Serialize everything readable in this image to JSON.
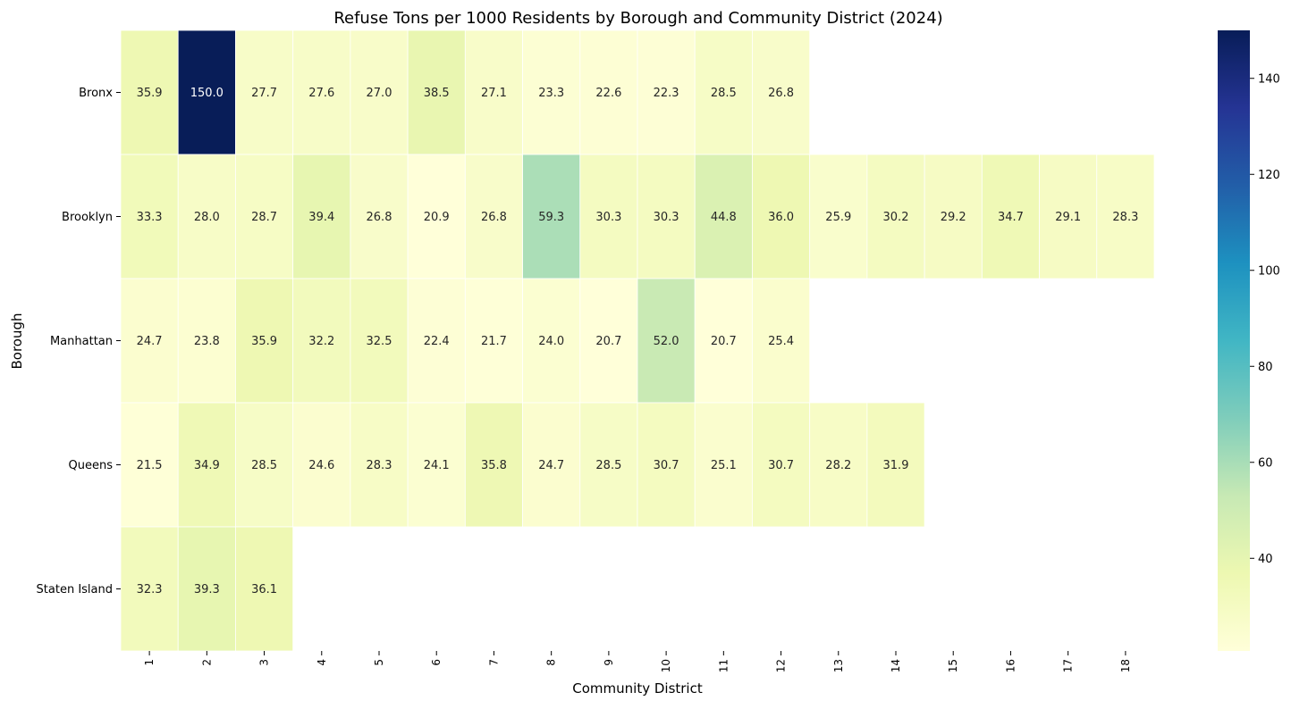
{
  "chart_data": {
    "type": "heatmap",
    "title": "Refuse Tons per 1000 Residents by Borough and Community District (2024)",
    "xlabel": "Community District",
    "ylabel": "Borough",
    "x_categories": [
      "1",
      "2",
      "3",
      "4",
      "5",
      "6",
      "7",
      "8",
      "9",
      "10",
      "11",
      "12",
      "13",
      "14",
      "15",
      "16",
      "17",
      "18"
    ],
    "y_categories": [
      "Bronx",
      "Brooklyn",
      "Manhattan",
      "Queens",
      "Staten Island"
    ],
    "values": [
      [
        35.9,
        150.0,
        27.7,
        27.6,
        27.0,
        38.5,
        27.1,
        23.3,
        22.6,
        22.3,
        28.5,
        26.8,
        null,
        null,
        null,
        null,
        null,
        null
      ],
      [
        33.3,
        28.0,
        28.7,
        39.4,
        26.8,
        20.9,
        26.8,
        59.3,
        30.3,
        30.3,
        44.8,
        36.0,
        25.9,
        30.2,
        29.2,
        34.7,
        29.1,
        28.3
      ],
      [
        24.7,
        23.8,
        35.9,
        32.2,
        32.5,
        22.4,
        21.7,
        24.0,
        20.7,
        52.0,
        20.7,
        25.4,
        null,
        null,
        null,
        null,
        null,
        null
      ],
      [
        21.5,
        34.9,
        28.5,
        24.6,
        28.3,
        24.1,
        35.8,
        24.7,
        28.5,
        30.7,
        25.1,
        30.7,
        28.2,
        31.9,
        null,
        null,
        null,
        null
      ],
      [
        32.3,
        39.3,
        36.1,
        null,
        null,
        null,
        null,
        null,
        null,
        null,
        null,
        null,
        null,
        null,
        null,
        null,
        null,
        null
      ]
    ],
    "colormap": "YlGnBu",
    "color_range": [
      20.7,
      150.0
    ],
    "colorbar_ticks": [
      40,
      60,
      80,
      100,
      120,
      140
    ],
    "annotations": true,
    "cell_borders": "white",
    "grid": false
  }
}
